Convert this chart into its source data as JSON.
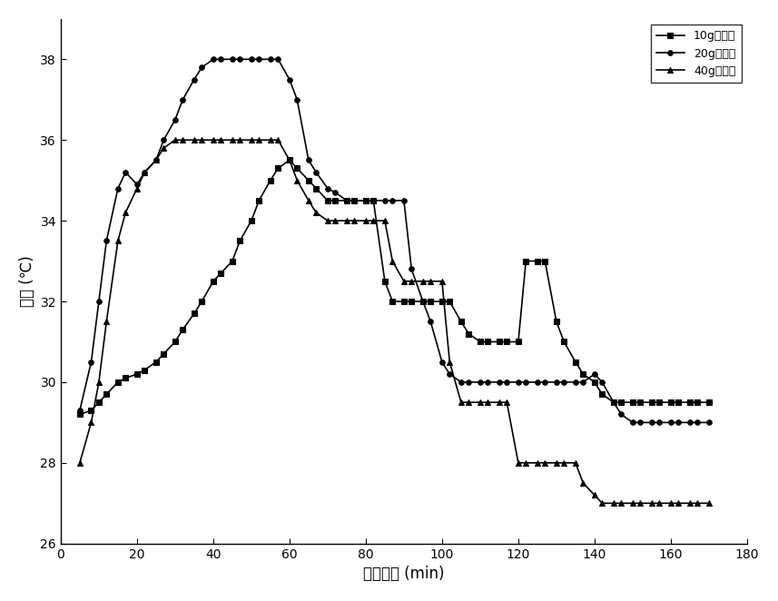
{
  "series": [
    {
      "label": "10g催化剂",
      "marker": "s",
      "color": "#000000",
      "x": [
        5,
        8,
        10,
        12,
        15,
        17,
        20,
        22,
        25,
        27,
        30,
        32,
        35,
        37,
        40,
        42,
        45,
        47,
        50,
        52,
        55,
        57,
        60,
        62,
        65,
        67,
        70,
        72,
        75,
        77,
        80,
        82,
        85,
        87,
        90,
        92,
        95,
        97,
        100,
        102,
        105,
        107,
        110,
        112,
        115,
        117,
        120,
        122,
        125,
        127,
        130,
        132,
        135,
        137,
        140,
        142,
        145,
        147,
        150,
        152,
        155,
        157,
        160,
        162,
        165,
        167,
        170
      ],
      "y": [
        29.2,
        29.3,
        29.5,
        29.7,
        30.0,
        30.1,
        30.2,
        30.3,
        30.5,
        30.7,
        31.0,
        31.3,
        31.7,
        32.0,
        32.5,
        32.7,
        33.0,
        33.5,
        34.0,
        34.5,
        35.0,
        35.3,
        35.5,
        35.3,
        35.0,
        34.8,
        34.5,
        34.5,
        34.5,
        34.5,
        34.5,
        34.5,
        32.5,
        32.0,
        32.0,
        32.0,
        32.0,
        32.0,
        32.0,
        32.0,
        31.5,
        31.2,
        31.0,
        31.0,
        31.0,
        31.0,
        31.0,
        33.0,
        33.0,
        33.0,
        31.5,
        31.0,
        30.5,
        30.2,
        30.0,
        29.7,
        29.5,
        29.5,
        29.5,
        29.5,
        29.5,
        29.5,
        29.5,
        29.5,
        29.5,
        29.5,
        29.5
      ]
    },
    {
      "label": "20g催化剂",
      "marker": "o",
      "color": "#000000",
      "x": [
        5,
        8,
        10,
        12,
        15,
        17,
        20,
        22,
        25,
        27,
        30,
        32,
        35,
        37,
        40,
        42,
        45,
        47,
        50,
        52,
        55,
        57,
        60,
        62,
        65,
        67,
        70,
        72,
        75,
        77,
        80,
        82,
        85,
        87,
        90,
        92,
        95,
        97,
        100,
        102,
        105,
        107,
        110,
        112,
        115,
        117,
        120,
        122,
        125,
        127,
        130,
        132,
        135,
        137,
        140,
        142,
        145,
        147,
        150,
        152,
        155,
        157,
        160,
        162,
        165,
        167,
        170
      ],
      "y": [
        29.3,
        30.5,
        32.0,
        33.5,
        34.8,
        35.2,
        34.9,
        35.2,
        35.5,
        36.0,
        36.5,
        37.0,
        37.5,
        37.8,
        38.0,
        38.0,
        38.0,
        38.0,
        38.0,
        38.0,
        38.0,
        38.0,
        37.5,
        37.0,
        35.5,
        35.2,
        34.8,
        34.7,
        34.5,
        34.5,
        34.5,
        34.5,
        34.5,
        34.5,
        34.5,
        32.8,
        32.0,
        31.5,
        30.5,
        30.2,
        30.0,
        30.0,
        30.0,
        30.0,
        30.0,
        30.0,
        30.0,
        30.0,
        30.0,
        30.0,
        30.0,
        30.0,
        30.0,
        30.0,
        30.2,
        30.0,
        29.5,
        29.2,
        29.0,
        29.0,
        29.0,
        29.0,
        29.0,
        29.0,
        29.0,
        29.0,
        29.0
      ]
    },
    {
      "label": "40g催化剂",
      "marker": "^",
      "color": "#000000",
      "x": [
        5,
        8,
        10,
        12,
        15,
        17,
        20,
        22,
        25,
        27,
        30,
        32,
        35,
        37,
        40,
        42,
        45,
        47,
        50,
        52,
        55,
        57,
        60,
        62,
        65,
        67,
        70,
        72,
        75,
        77,
        80,
        82,
        85,
        87,
        90,
        92,
        95,
        97,
        100,
        102,
        105,
        107,
        110,
        112,
        115,
        117,
        120,
        122,
        125,
        127,
        130,
        132,
        135,
        137,
        140,
        142,
        145,
        147,
        150,
        152,
        155,
        157,
        160,
        162,
        165,
        167,
        170
      ],
      "y": [
        28.0,
        29.0,
        30.0,
        31.5,
        33.5,
        34.2,
        34.8,
        35.2,
        35.5,
        35.8,
        36.0,
        36.0,
        36.0,
        36.0,
        36.0,
        36.0,
        36.0,
        36.0,
        36.0,
        36.0,
        36.0,
        36.0,
        35.5,
        35.0,
        34.5,
        34.2,
        34.0,
        34.0,
        34.0,
        34.0,
        34.0,
        34.0,
        34.0,
        33.0,
        32.5,
        32.5,
        32.5,
        32.5,
        32.5,
        30.5,
        29.5,
        29.5,
        29.5,
        29.5,
        29.5,
        29.5,
        28.0,
        28.0,
        28.0,
        28.0,
        28.0,
        28.0,
        28.0,
        27.5,
        27.2,
        27.0,
        27.0,
        27.0,
        27.0,
        27.0,
        27.0,
        27.0,
        27.0,
        27.0,
        27.0,
        27.0,
        27.0
      ]
    }
  ],
  "xlabel": "反应时间 (min)",
  "ylabel": "温度 (℃)",
  "xlim": [
    0,
    180
  ],
  "ylim": [
    26,
    39
  ],
  "xticks": [
    0,
    20,
    40,
    60,
    80,
    100,
    120,
    140,
    160,
    180
  ],
  "yticks": [
    26,
    28,
    30,
    32,
    34,
    36,
    38
  ],
  "background_color": "#ffffff",
  "legend_loc": "upper right",
  "markersize": 4,
  "linewidth": 1.2,
  "figsize": [
    8.57,
    6.62
  ],
  "dpi": 100
}
